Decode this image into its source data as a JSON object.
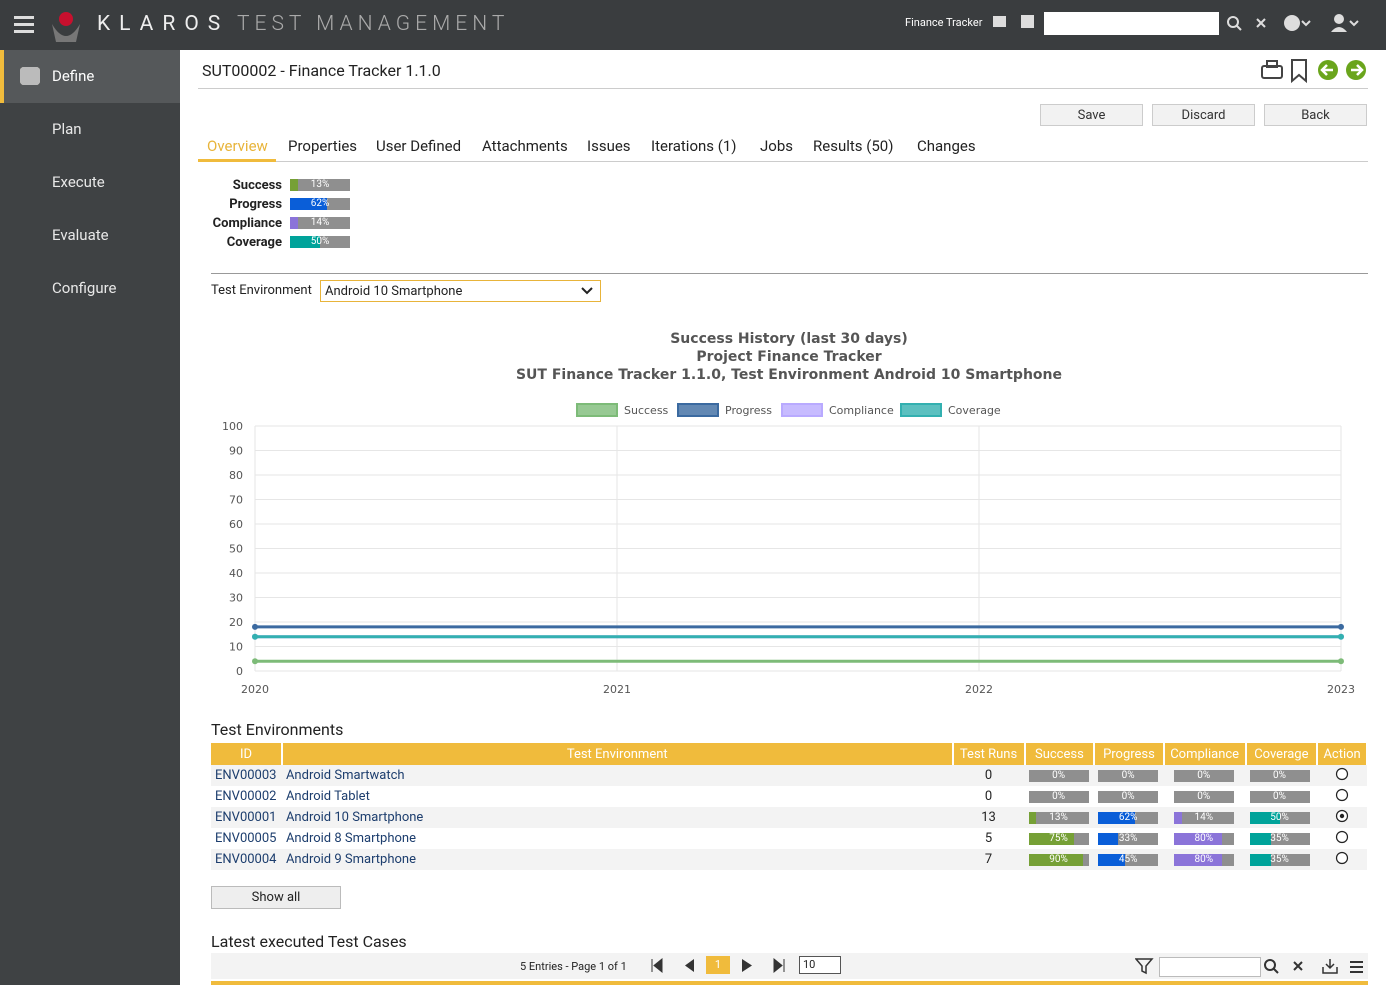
{
  "header": {
    "logo_text": "KLAROS",
    "logo_sub": "TEST MANAGEMENT",
    "project": "Finance Tracker"
  },
  "sidebar": {
    "items": [
      "Define",
      "Plan",
      "Execute",
      "Evaluate",
      "Configure"
    ]
  },
  "page": {
    "title": "SUT00002 - Finance Tracker 1.1.0",
    "buttons": [
      "Save",
      "Discard",
      "Back"
    ],
    "tabs": [
      "Overview",
      "Properties",
      "User Defined",
      "Attachments",
      "Issues",
      "Iterations (1)",
      "Jobs",
      "Results (50)",
      "Changes"
    ]
  },
  "summary": {
    "labels": [
      "Success",
      "Progress",
      "Compliance",
      "Coverage"
    ],
    "values": [
      13,
      62,
      14,
      50
    ],
    "value_labels": [
      "13%",
      "62%",
      "14%",
      "50%"
    ],
    "colors": [
      "#76a036",
      "#0a5ed8",
      "#8b74d9",
      "#00a39a"
    ]
  },
  "environment_filter": {
    "label": "Test Environment",
    "value": "Android 10 Smartphone"
  },
  "chart_data": {
    "type": "line",
    "title": [
      "Success History (last 30 days)",
      "Project Finance Tracker",
      "SUT Finance Tracker 1.1.0, Test Environment Android 10 Smartphone"
    ],
    "x": [
      2020,
      2023
    ],
    "xlim": [
      2020,
      2023
    ],
    "xticks": [
      2020,
      2021,
      2022,
      2023
    ],
    "ylim": [
      0,
      100
    ],
    "yticks": [
      0,
      10,
      20,
      30,
      40,
      50,
      60,
      70,
      80,
      90,
      100
    ],
    "grid": true,
    "series": [
      {
        "name": "Success",
        "color": "#7dbb78",
        "values": [
          4,
          4
        ]
      },
      {
        "name": "Progress",
        "color": "#3b6aa0",
        "values": [
          18,
          18
        ]
      },
      {
        "name": "Compliance",
        "color": "#b9aaff",
        "values": [
          14,
          14
        ]
      },
      {
        "name": "Coverage",
        "color": "#33b0b0",
        "values": [
          14,
          14
        ]
      }
    ]
  },
  "environments": {
    "title": "Test Environments",
    "columns": [
      "ID",
      "Test Environment",
      "Test Runs",
      "Success",
      "Progress",
      "Compliance",
      "Coverage",
      "Action"
    ],
    "selected_row": 2,
    "rows": [
      {
        "id": "ENV00003",
        "name": "Android Smartwatch",
        "runs": "0",
        "values": [
          0,
          0,
          0,
          0
        ],
        "value_labels": [
          "0%",
          "0%",
          "0%",
          "0%"
        ]
      },
      {
        "id": "ENV00002",
        "name": "Android Tablet",
        "runs": "0",
        "values": [
          0,
          0,
          0,
          0
        ],
        "value_labels": [
          "0%",
          "0%",
          "0%",
          "0%"
        ]
      },
      {
        "id": "ENV00001",
        "name": "Android 10 Smartphone",
        "runs": "13",
        "values": [
          13,
          62,
          14,
          50
        ],
        "value_labels": [
          "13%",
          "62%",
          "14%",
          "50%"
        ]
      },
      {
        "id": "ENV00005",
        "name": "Android 8 Smartphone",
        "runs": "5",
        "values": [
          75,
          33,
          80,
          35
        ],
        "value_labels": [
          "75%",
          "33%",
          "80%",
          "35%"
        ]
      },
      {
        "id": "ENV00004",
        "name": "Android 9 Smartphone",
        "runs": "7",
        "values": [
          90,
          45,
          80,
          35
        ],
        "value_labels": [
          "90%",
          "45%",
          "80%",
          "35%"
        ]
      }
    ],
    "show_all": "Show all"
  },
  "latest": {
    "title": "Latest executed Test Cases",
    "pager": "5 Entries - Page 1 of 1",
    "page": "1",
    "page_size": "10"
  }
}
